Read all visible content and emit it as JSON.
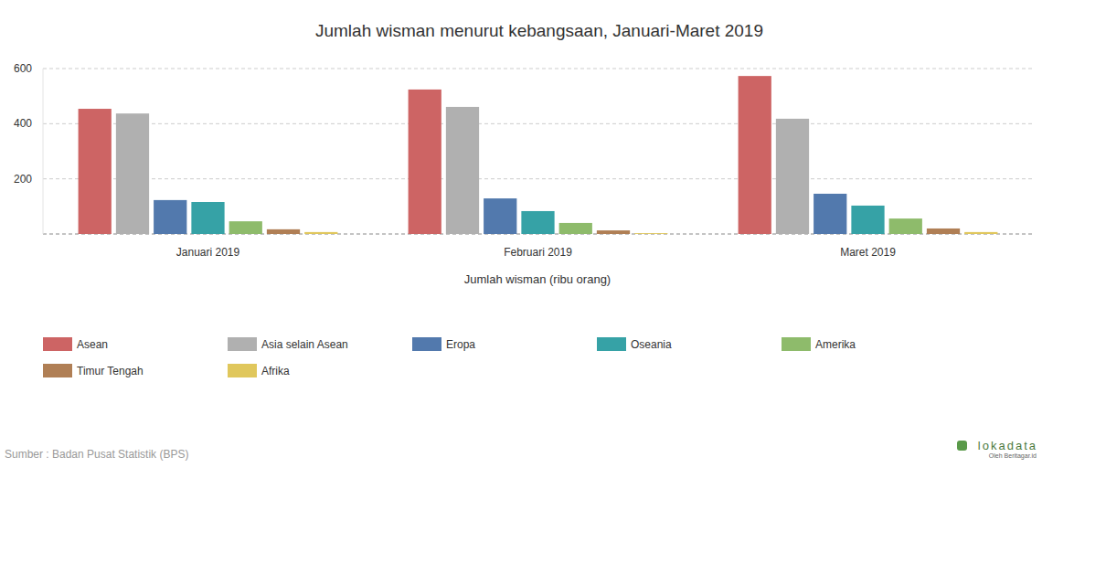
{
  "chart_data": {
    "type": "bar",
    "title": "Jumlah wisman menurut kebangsaan, Januari-Maret 2019",
    "x_label": "Jumlah wisman (ribu orang)",
    "categories": [
      "Januari 2019",
      "Februari 2019",
      "Maret 2019"
    ],
    "series": [
      {
        "name": "Asean",
        "color": "#cd6464",
        "values": [
          454,
          524,
          573
        ]
      },
      {
        "name": "Asia selain Asean",
        "color": "#b0b0b0",
        "values": [
          437,
          461,
          418
        ]
      },
      {
        "name": "Eropa",
        "color": "#5279ad",
        "values": [
          123,
          129,
          146
        ]
      },
      {
        "name": "Oseania",
        "color": "#36a2a6",
        "values": [
          116,
          83,
          103
        ]
      },
      {
        "name": "Amerika",
        "color": "#8ebb6b",
        "values": [
          46,
          40,
          56
        ]
      },
      {
        "name": "Timur Tengah",
        "color": "#b07f55",
        "values": [
          17,
          13,
          20
        ]
      },
      {
        "name": "Afrika",
        "color": "#e0c75c",
        "values": [
          7,
          3,
          7
        ]
      }
    ],
    "ylim": [
      0,
      600
    ],
    "yticks": [
      200,
      400,
      600
    ],
    "grid": true,
    "legend": "bottom",
    "source": "Sumber : Badan Pusat Statistik (BPS)",
    "credits": [
      "lokadata",
      "Oleh Beritagar.id"
    ]
  }
}
